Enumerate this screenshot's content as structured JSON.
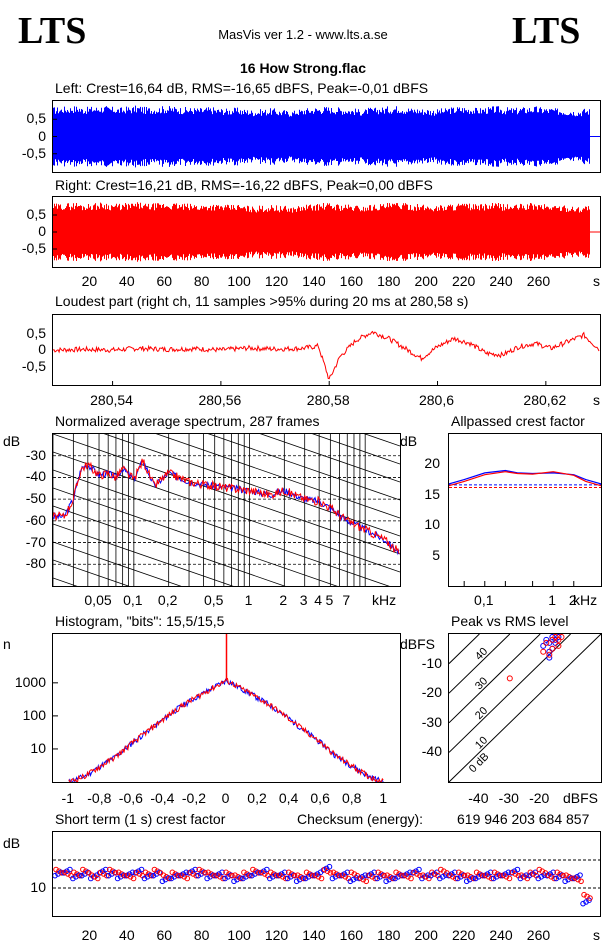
{
  "header": {
    "logo_left": "LTS",
    "logo_right": "LTS",
    "app_title": "MasVis ver 1.2 - www.lts.a.se",
    "file_title": "16 How Strong.flac"
  },
  "colors": {
    "left": "#0000ff",
    "right": "#ff0000",
    "grid": "#000000"
  },
  "chart_data": [
    {
      "id": "left",
      "type": "area",
      "title": "Left: Crest=16,64 dB, RMS=-16,65 dBFS, Peak=-0,01 dBFS",
      "ylim": [
        -1,
        1
      ],
      "y_ticks": [
        "0,5",
        "0",
        "-0,5"
      ],
      "xlim": [
        0,
        287
      ],
      "envelope": [
        0.86,
        0.88,
        0.9,
        0.86,
        0.88,
        0.9,
        0.87,
        0.85,
        0.88,
        0.9,
        0.86,
        0.87,
        0.89,
        0.88,
        0.86,
        0.85,
        0.84,
        0.86,
        0.83,
        0.82,
        0.84,
        0.8,
        0.78,
        0.8,
        0.82,
        0.78,
        0.76,
        0.8,
        0.84,
        0.86,
        0.88,
        0.86,
        0.84,
        0.82,
        0.8,
        0.84,
        0.86,
        0.88,
        0.9,
        0.86,
        0.84,
        0.82,
        0.8,
        0.82,
        0.86,
        0.88,
        0.86,
        0.84,
        0.86,
        0.88,
        0.85,
        0.84,
        0.86,
        0.88,
        0.86,
        0.84,
        0.82,
        0.8,
        0.78,
        0.82
      ]
    },
    {
      "id": "right",
      "type": "area",
      "title": "Right: Crest=16,21 dB, RMS=-16,22 dBFS, Peak=0,00 dBFS",
      "ylim": [
        -1,
        1
      ],
      "y_ticks": [
        "0,5",
        "0",
        "-0,5"
      ],
      "xlim": [
        0,
        287
      ],
      "x_ticks": [
        "20",
        "40",
        "60",
        "80",
        "100",
        "120",
        "140",
        "160",
        "180",
        "200",
        "220",
        "240",
        "260",
        "s"
      ],
      "envelope": [
        0.84,
        0.86,
        0.88,
        0.84,
        0.86,
        0.88,
        0.85,
        0.84,
        0.86,
        0.88,
        0.84,
        0.85,
        0.87,
        0.86,
        0.84,
        0.83,
        0.82,
        0.84,
        0.82,
        0.8,
        0.82,
        0.78,
        0.76,
        0.78,
        0.8,
        0.77,
        0.75,
        0.78,
        0.82,
        0.84,
        0.86,
        0.84,
        0.82,
        0.8,
        0.78,
        0.82,
        0.84,
        0.86,
        0.88,
        0.85,
        0.83,
        0.81,
        0.79,
        0.81,
        0.84,
        0.86,
        0.84,
        0.82,
        0.84,
        0.86,
        0.83,
        0.82,
        0.84,
        0.86,
        0.84,
        0.82,
        0.8,
        0.78,
        0.76,
        0.8
      ]
    },
    {
      "id": "loudest",
      "type": "line",
      "title": "Loudest part (right ch, 11 samples >95% during 20 ms at 280,58 s)",
      "xlim": [
        280.529,
        280.63
      ],
      "ylim": [
        -1,
        1
      ],
      "y_ticks": [
        "0,5",
        "0",
        "-0,5"
      ],
      "x_ticks": [
        "280,54",
        "280,56",
        "280,58",
        "280,6",
        "280,62",
        "s"
      ],
      "x_tick_values": [
        280.54,
        280.56,
        280.58,
        280.6,
        280.62
      ],
      "x": [
        280.529,
        280.535,
        280.54,
        280.545,
        280.55,
        280.555,
        280.56,
        280.565,
        280.57,
        280.575,
        280.578,
        280.58,
        280.582,
        280.585,
        280.588,
        280.591,
        280.594,
        280.597,
        280.6,
        280.603,
        280.606,
        280.609,
        280.612,
        280.615,
        280.618,
        280.621,
        280.624,
        280.627,
        280.63
      ],
      "y": [
        0.0,
        0.02,
        0.0,
        0.05,
        0.02,
        0.04,
        0.0,
        0.06,
        0.03,
        0.05,
        0.12,
        -0.9,
        -0.2,
        0.3,
        0.55,
        0.35,
        0.05,
        -0.25,
        0.1,
        0.35,
        0.2,
        -0.1,
        -0.15,
        0.1,
        0.2,
        0.05,
        0.25,
        0.45,
        0.0
      ]
    },
    {
      "id": "spectrum",
      "type": "line",
      "title": "Normalized average spectrum, 287 frames",
      "ylabel": "dB",
      "y_ticks": [
        "-30",
        "-40",
        "-50",
        "-60",
        "-70",
        "-80"
      ],
      "y_tick_values": [
        -30,
        -40,
        -50,
        -60,
        -70,
        -80
      ],
      "ylim": [
        -90,
        -20
      ],
      "x_scale": "log",
      "x_ticks": [
        "0,05",
        "0,1",
        "0,2",
        "0,5",
        "1",
        "2",
        "3",
        "4",
        "5",
        "7",
        "kHz"
      ],
      "x_tick_values": [
        0.05,
        0.1,
        0.2,
        0.5,
        1,
        2,
        3,
        4,
        5,
        7
      ],
      "xlim": [
        0.02,
        20
      ],
      "x": [
        0.02,
        0.025,
        0.03,
        0.035,
        0.04,
        0.05,
        0.06,
        0.07,
        0.08,
        0.1,
        0.12,
        0.15,
        0.2,
        0.3,
        0.5,
        0.7,
        1,
        1.5,
        2,
        3,
        4,
        5,
        7,
        10,
        15,
        20
      ],
      "y": [
        -58,
        -58,
        -50,
        -36,
        -34,
        -39,
        -38,
        -40,
        -36,
        -41,
        -32,
        -44,
        -38,
        -42,
        -44,
        -45,
        -46,
        -48,
        -46,
        -50,
        -51,
        -54,
        -60,
        -64,
        -69,
        -75
      ]
    },
    {
      "id": "allpass",
      "type": "line",
      "title": "Allpassed crest factor",
      "ylabel": "dB",
      "y_ticks": [
        "20",
        "15",
        "10",
        "5"
      ],
      "y_tick_values": [
        20,
        15,
        10,
        5
      ],
      "ylim": [
        0,
        25
      ],
      "x_scale": "log",
      "x_ticks": [
        "0,1",
        "1",
        "2",
        "kHz"
      ],
      "x_tick_values": [
        0.1,
        1,
        2
      ],
      "xlim": [
        0.03,
        5
      ],
      "x": [
        0.03,
        0.05,
        0.1,
        0.2,
        0.3,
        0.5,
        1,
        2,
        3,
        5
      ],
      "series": [
        {
          "channel": "left",
          "values": [
            16.8,
            17.5,
            18.6,
            19.0,
            18.6,
            18.5,
            18.6,
            18.3,
            17.5,
            16.8
          ],
          "reference": 16.64
        },
        {
          "channel": "right",
          "values": [
            16.5,
            17.2,
            18.3,
            18.8,
            18.5,
            18.4,
            18.8,
            18.2,
            17.2,
            16.5
          ],
          "reference": 16.21
        }
      ]
    },
    {
      "id": "histogram",
      "type": "line",
      "title": "Histogram, \"bits\": 15,5/15,5",
      "ylabel": "n",
      "y_scale": "log",
      "y_ticks": [
        "1000",
        "100",
        "10"
      ],
      "y_tick_values": [
        1000,
        100,
        10
      ],
      "ylim": [
        1,
        30000
      ],
      "x_ticks": [
        "-1",
        "-0,8",
        "-0,6",
        "-0,4",
        "-0,2",
        "0",
        "0,2",
        "0,4",
        "0,6",
        "0,8",
        "1"
      ],
      "x_tick_values": [
        -1,
        -0.8,
        -0.6,
        -0.4,
        -0.2,
        0,
        0.2,
        0.4,
        0.6,
        0.8,
        1
      ],
      "xlim": [
        -1.1,
        1.1
      ],
      "x": [
        -1,
        -0.9,
        -0.8,
        -0.7,
        -0.6,
        -0.5,
        -0.4,
        -0.3,
        -0.2,
        -0.1,
        0,
        0.1,
        0.2,
        0.3,
        0.4,
        0.5,
        0.6,
        0.7,
        0.8,
        0.9,
        1
      ],
      "y": [
        1,
        1.5,
        3,
        6,
        15,
        35,
        80,
        180,
        350,
        650,
        1200,
        650,
        350,
        180,
        80,
        35,
        15,
        6,
        3,
        1.5,
        1
      ]
    },
    {
      "id": "peak_vs_rms",
      "type": "scatter",
      "title": "Peak vs RMS level",
      "ylabel": "dBFS",
      "xlabel": "dBFS",
      "y_ticks": [
        "-10",
        "-20",
        "-30",
        "-40"
      ],
      "y_tick_values": [
        -10,
        -20,
        -30,
        -40
      ],
      "x_ticks": [
        "-40",
        "-30",
        "-20"
      ],
      "x_tick_values": [
        -40,
        -30,
        -20
      ],
      "xlim": [
        -50,
        0
      ],
      "ylim": [
        -50,
        0
      ],
      "crest_lines": [
        "0 dB",
        "10",
        "20",
        "30",
        "40"
      ],
      "series": [
        {
          "channel": "left",
          "x": [
            -18,
            -17,
            -16,
            -15,
            -19,
            -17,
            -16,
            -15,
            -14,
            -17
          ],
          "y": [
            -2,
            -3,
            -1,
            -2,
            -4,
            -6,
            -5,
            -3,
            -1,
            -8
          ]
        },
        {
          "channel": "right",
          "x": [
            -18,
            -16,
            -15,
            -14,
            -19,
            -17,
            -16,
            -14,
            -13,
            -30
          ],
          "y": [
            -3,
            -2,
            -1,
            -4,
            -6,
            -7,
            -5,
            -2,
            -1,
            -15
          ]
        }
      ]
    },
    {
      "id": "short_term_crest",
      "type": "scatter",
      "title": "Short term (1 s) crest factor",
      "ylabel": "dB",
      "y_ticks": [
        "10"
      ],
      "y_tick_values": [
        10
      ],
      "ylim": [
        0,
        30
      ],
      "xlim": [
        0,
        287
      ],
      "x_ticks": [
        "20",
        "40",
        "60",
        "80",
        "100",
        "120",
        "140",
        "160",
        "180",
        "200",
        "220",
        "240",
        "260",
        "s"
      ],
      "reference_lines": [
        10,
        20
      ],
      "left_values": [
        15,
        16,
        14,
        15,
        14,
        16,
        15,
        14,
        15,
        16,
        14,
        15,
        13,
        14,
        15,
        16,
        15,
        14,
        15,
        14,
        13,
        14,
        15,
        16,
        14,
        15,
        14,
        13,
        14,
        15,
        17,
        14,
        15,
        13,
        14,
        15,
        14,
        13,
        14,
        15,
        16,
        14,
        15,
        14,
        15,
        14,
        13,
        14,
        15,
        14,
        15,
        16,
        14,
        15,
        14,
        15,
        14,
        13,
        14,
        5
      ],
      "right_values": [
        16,
        15,
        15,
        16,
        14,
        15,
        16,
        15,
        14,
        15,
        15,
        16,
        14,
        15,
        14,
        15,
        16,
        15,
        14,
        15,
        14,
        15,
        16,
        15,
        15,
        14,
        15,
        14,
        15,
        14,
        16,
        15,
        14,
        15,
        13,
        14,
        15,
        14,
        15,
        14,
        15,
        14,
        15,
        16,
        14,
        15,
        14,
        15,
        14,
        15,
        14,
        15,
        14,
        15,
        16,
        14,
        15,
        14,
        13,
        7
      ]
    },
    {
      "id": "checksum",
      "type": "table",
      "label": "Checksum (energy):",
      "value": "619 946 203 684 857"
    }
  ]
}
